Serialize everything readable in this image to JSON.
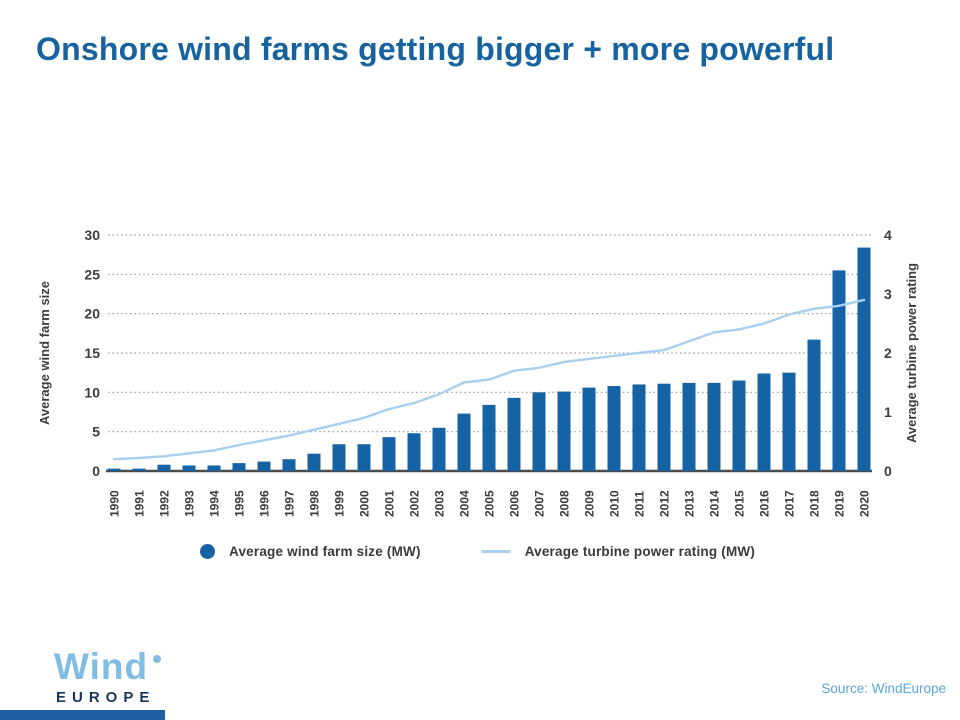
{
  "title": "Onshore wind farms getting bigger + more powerful",
  "source": "Source: WindEurope",
  "logo": {
    "word": "Wind",
    "sub": "EUROPE",
    "dot_icon": "raised-dot"
  },
  "colors": {
    "title_blue": "#17639f",
    "bar_blue": "#1563a5",
    "line_blue": "#a8cfee",
    "axis_text": "#3d3d3d",
    "grid_gray": "#9b9b9b",
    "baseline_gray": "#4a4a4a",
    "logo_light_blue": "#7fbde4",
    "logo_navy": "#17365d",
    "source_blue": "#58a6dc",
    "accent_bar": "#1d5fa0"
  },
  "legend": {
    "items": [
      {
        "swatch": "circle",
        "label": "Average wind farm size (MW)"
      },
      {
        "swatch": "line",
        "label": "Average turbine power rating (MW)"
      }
    ]
  },
  "chart_data": {
    "type": "bar",
    "subtype": "bar+line dual axis",
    "categories": [
      "1990",
      "1991",
      "1992",
      "1993",
      "1994",
      "1995",
      "1996",
      "1997",
      "1998",
      "1999",
      "2000",
      "2001",
      "2002",
      "2003",
      "2004",
      "2005",
      "2006",
      "2007",
      "2008",
      "2009",
      "2010",
      "2011",
      "2012",
      "2013",
      "2014",
      "2015",
      "2016",
      "2017",
      "2018",
      "2019",
      "2020"
    ],
    "series": [
      {
        "name": "Average wind farm size (MW)",
        "type": "bar",
        "axis": "left",
        "color": "#1563a5",
        "values": [
          0.3,
          0.3,
          0.8,
          0.7,
          0.7,
          1.0,
          1.2,
          1.5,
          2.2,
          3.4,
          3.4,
          4.3,
          4.8,
          5.5,
          7.3,
          8.4,
          9.3,
          10.0,
          10.1,
          10.6,
          10.8,
          11.0,
          11.1,
          11.2,
          11.2,
          11.5,
          12.4,
          12.5,
          16.7,
          25.5,
          28.4
        ]
      },
      {
        "name": "Average turbine power rating (MW)",
        "type": "line",
        "axis": "right",
        "color": "#a8cfee",
        "values": [
          0.2,
          0.22,
          0.25,
          0.3,
          0.35,
          0.44,
          0.52,
          0.6,
          0.7,
          0.8,
          0.9,
          1.05,
          1.15,
          1.3,
          1.5,
          1.55,
          1.7,
          1.75,
          1.85,
          1.9,
          1.95,
          2.0,
          2.05,
          2.2,
          2.35,
          2.4,
          2.5,
          2.65,
          2.75,
          2.8,
          2.9
        ]
      }
    ],
    "left_axis": {
      "label": "Average wind farm size",
      "ticks": [
        0,
        5,
        10,
        15,
        20,
        25,
        30
      ],
      "range": [
        0,
        30
      ]
    },
    "right_axis": {
      "label": "Average turbine power rating",
      "ticks": [
        0,
        1,
        2,
        3,
        4
      ],
      "range": [
        0,
        4
      ]
    },
    "grid": "horizontal-dotted",
    "legend_position": "bottom"
  }
}
